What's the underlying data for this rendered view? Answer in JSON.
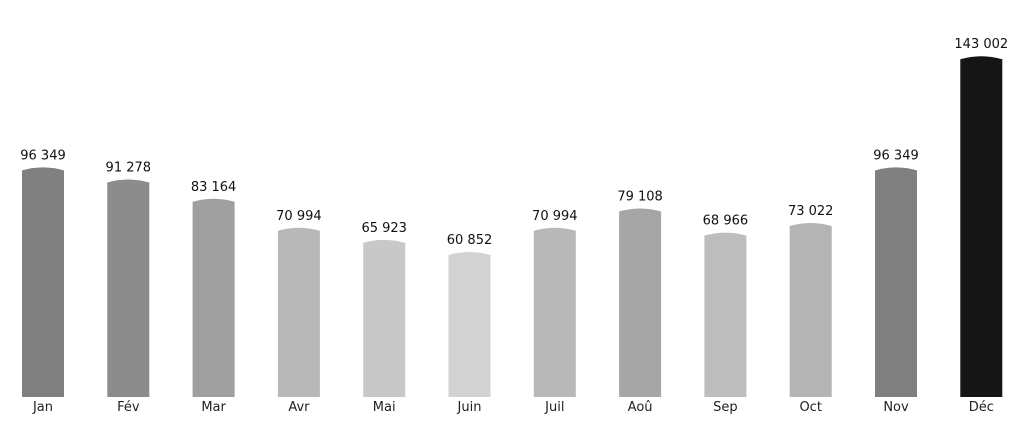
{
  "chart_data": {
    "type": "bar",
    "title": "",
    "xlabel": "",
    "ylabel": "",
    "ylim": [
      0,
      150000
    ],
    "grid": false,
    "legend": "none",
    "categories": [
      "Jan",
      "Fév",
      "Mar",
      "Avr",
      "Mai",
      "Juin",
      "Juil",
      "Aoû",
      "Sep",
      "Oct",
      "Nov",
      "Déc"
    ],
    "values": [
      96349,
      91278,
      83164,
      70994,
      65923,
      60852,
      70994,
      79108,
      68966,
      73022,
      96349,
      143002
    ],
    "value_labels": [
      "96 349",
      "91 278",
      "83 164",
      "70 994",
      "65 923",
      "60 852",
      "70 994",
      "79 108",
      "68 966",
      "73 022",
      "96 349",
      "143 002"
    ],
    "colors": [
      "#808080",
      "#8c8c8c",
      "#9f9f9f",
      "#b8b8b8",
      "#c8c8c8",
      "#d2d2d2",
      "#b8b8b8",
      "#a6a6a6",
      "#bdbdbd",
      "#b4b4b4",
      "#808080",
      "#151515"
    ]
  }
}
